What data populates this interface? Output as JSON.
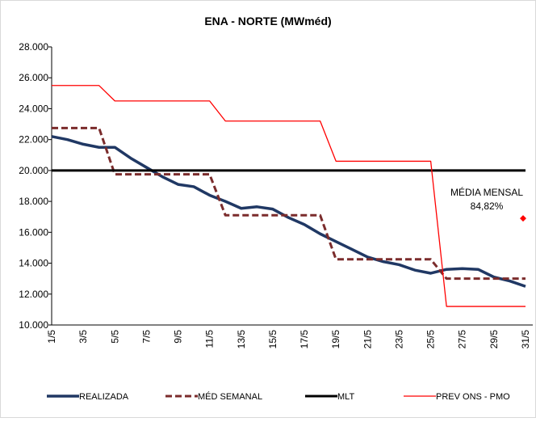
{
  "chart_data": {
    "type": "line",
    "title": "ENA - NORTE (MWméd)",
    "categories": [
      "1/5",
      null,
      "3/5",
      null,
      "5/5",
      null,
      "7/5",
      null,
      "9/5",
      null,
      "11/5",
      null,
      "13/5",
      null,
      "15/5",
      null,
      "17/5",
      null,
      "19/5",
      null,
      "21/5",
      null,
      "23/5",
      null,
      "25/5",
      null,
      "27/5",
      null,
      "29/5",
      null,
      "31/5"
    ],
    "ylim": [
      10000,
      28000
    ],
    "yticks": [
      {
        "value": 10000,
        "label": "10.000"
      },
      {
        "value": 12000,
        "label": "12.000"
      },
      {
        "value": 14000,
        "label": "14.000"
      },
      {
        "value": 16000,
        "label": "16.000"
      },
      {
        "value": 18000,
        "label": "18.000"
      },
      {
        "value": 20000,
        "label": "20.000"
      },
      {
        "value": 22000,
        "label": "22.000"
      },
      {
        "value": 24000,
        "label": "24.000"
      },
      {
        "value": 26000,
        "label": "26.000"
      },
      {
        "value": 28000,
        "label": "28.000"
      }
    ],
    "grid": false,
    "series": [
      {
        "name": "REALIZADA",
        "color": "#203864",
        "width": 3.5,
        "dash": false,
        "values": [
          22200,
          22000,
          21700,
          21500,
          21500,
          20800,
          20200,
          19600,
          19100,
          18950,
          18400,
          18000,
          17550,
          17650,
          17500,
          16950,
          16500,
          15900,
          15400,
          14900,
          14400,
          14100,
          13900,
          13550,
          13350,
          13600,
          13650,
          13600,
          13100,
          12850,
          12500
        ]
      },
      {
        "name": "MÉD SEMANAL",
        "color": "#7b2c2c",
        "width": 3,
        "dash": true,
        "values": [
          22750,
          22750,
          22750,
          22750,
          19750,
          19750,
          19750,
          19750,
          19750,
          19750,
          19750,
          17100,
          17100,
          17100,
          17100,
          17100,
          17100,
          17100,
          14250,
          14250,
          14250,
          14250,
          14250,
          14250,
          14250,
          13000,
          13000,
          13000,
          13000,
          13000,
          13000
        ]
      },
      {
        "name": "MLT",
        "color": "#000000",
        "width": 3,
        "dash": false,
        "values": [
          20000,
          20000,
          20000,
          20000,
          20000,
          20000,
          20000,
          20000,
          20000,
          20000,
          20000,
          20000,
          20000,
          20000,
          20000,
          20000,
          20000,
          20000,
          20000,
          20000,
          20000,
          20000,
          20000,
          20000,
          20000,
          20000,
          20000,
          20000,
          20000,
          20000,
          20000
        ]
      },
      {
        "name": "PREV ONS - PMO",
        "color": "#ff0000",
        "width": 1.3,
        "dash": false,
        "values": [
          25500,
          25500,
          25500,
          25500,
          24500,
          24500,
          24500,
          24500,
          24500,
          24500,
          24500,
          23200,
          23200,
          23200,
          23200,
          23200,
          23200,
          23200,
          20600,
          20600,
          20600,
          20600,
          20600,
          20600,
          20600,
          11200,
          11200,
          11200,
          11200,
          11200,
          11200
        ]
      }
    ],
    "annotation": {
      "lines": [
        "MÉDIA MENSAL",
        "84,82%"
      ],
      "value": 16900,
      "color": "#ff0000"
    }
  }
}
